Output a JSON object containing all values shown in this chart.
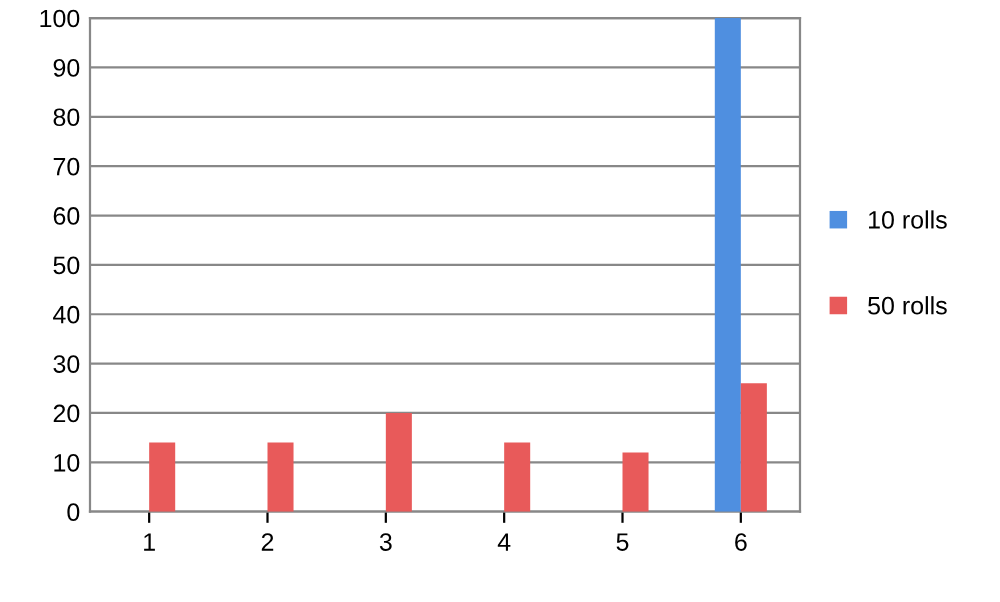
{
  "chart_data": {
    "type": "bar",
    "categories": [
      "1",
      "2",
      "3",
      "4",
      "5",
      "6"
    ],
    "series": [
      {
        "name": "10 rolls",
        "color": "#4f8fe0",
        "values": [
          0,
          0,
          0,
          0,
          0,
          100
        ]
      },
      {
        "name": "50 rolls",
        "color": "#e85a5a",
        "values": [
          14,
          14,
          20,
          14,
          12,
          26
        ]
      }
    ],
    "ylim": [
      0,
      100
    ],
    "yticks": [
      0,
      10,
      20,
      30,
      40,
      50,
      60,
      70,
      80,
      90,
      100
    ],
    "grid": "y",
    "legend": "right"
  }
}
